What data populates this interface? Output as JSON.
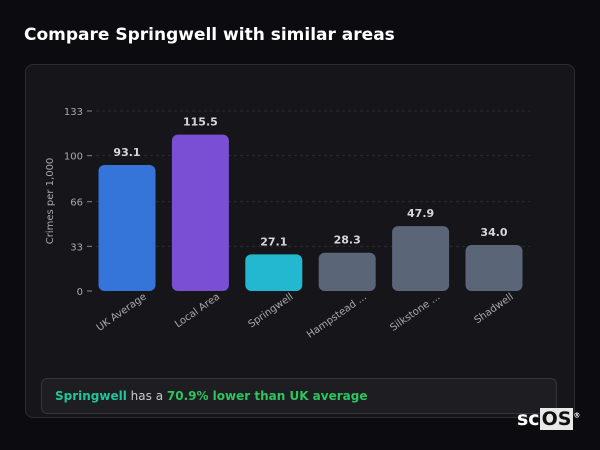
{
  "title": "Compare Springwell with similar areas",
  "chart_data": {
    "type": "bar",
    "categories": [
      "UK Average",
      "Local Area",
      "Springwell",
      "Hampstead ...",
      "Silkstone ...",
      "Shadwell"
    ],
    "values": [
      93.1,
      115.5,
      27.1,
      28.3,
      47.9,
      34.0
    ],
    "value_labels": [
      "93.1",
      "115.5",
      "27.1",
      "28.3",
      "47.9",
      "34.0"
    ],
    "colors": [
      "#3574d9",
      "#7b4fd4",
      "#22b8cf",
      "#5b6578",
      "#5b6578",
      "#5b6578"
    ],
    "ylabel": "Crimes per 1,000",
    "yticks": [
      0,
      33,
      66,
      100,
      133
    ],
    "ylim": [
      0,
      133
    ],
    "grid": true
  },
  "callout": {
    "area": "Springwell",
    "middle": " has a ",
    "highlight": "70.9% lower than UK average"
  },
  "logo": {
    "prefix": "sc",
    "boxed": "OS",
    "mark": "®"
  }
}
